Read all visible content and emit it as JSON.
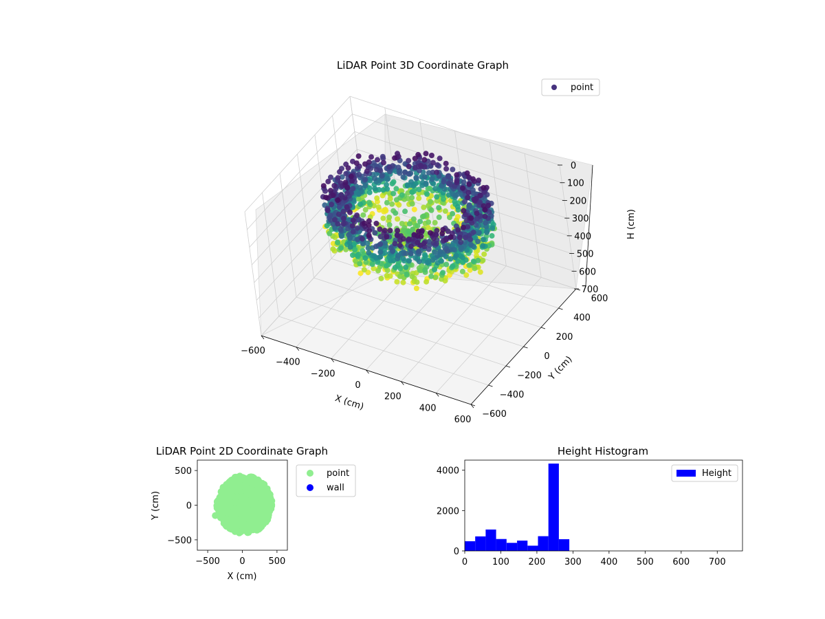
{
  "chart_data": [
    {
      "type": "scatter",
      "subtype": "3d",
      "title": "LiDAR Point 3D Coordinate Graph",
      "xlabel": "X (cm)",
      "ylabel": "Y (cm)",
      "zlabel": "H (cm)",
      "xlim": [
        -600,
        600
      ],
      "ylim": [
        -600,
        600
      ],
      "zlim": [
        0,
        700
      ],
      "z_inverted": true,
      "xticks": [
        "−600",
        "−400",
        "−200",
        "0",
        "200",
        "400",
        "600"
      ],
      "yticks": [
        "−600",
        "−400",
        "−200",
        "0",
        "200",
        "400",
        "600"
      ],
      "zticks": [
        "0",
        "100",
        "200",
        "300",
        "400",
        "500",
        "600",
        "700"
      ],
      "colormap": "viridis",
      "grid": true,
      "legend": {
        "position": "top-right",
        "entries": [
          {
            "label": "point",
            "color": "#46327e"
          }
        ]
      },
      "outliers": [
        {
          "x": -430,
          "y": -100,
          "h": 300
        },
        {
          "x": -330,
          "y": -150,
          "h": 330
        }
      ]
    },
    {
      "type": "scatter",
      "title": "LiDAR Point 2D Coordinate Graph",
      "xlabel": "X (cm)",
      "ylabel": "Y (cm)",
      "xlim": [
        -650,
        650
      ],
      "ylim": [
        -650,
        650
      ],
      "xticks": [
        "−500",
        "0",
        "500"
      ],
      "yticks": [
        "−500",
        "0",
        "500"
      ],
      "series": [
        {
          "name": "point",
          "color": "#90ee90"
        },
        {
          "name": "wall",
          "color": "#0000ff"
        }
      ],
      "outliers": [
        {
          "x": -390,
          "y": -150
        }
      ],
      "legend": {
        "position": "outside-right"
      }
    },
    {
      "type": "histogram",
      "title": "Height Histogram",
      "xlabel": "",
      "ylabel": "",
      "xlim": [
        0,
        770
      ],
      "ylim": [
        0,
        4500
      ],
      "xticks": [
        "0",
        "100",
        "200",
        "300",
        "400",
        "500",
        "600",
        "700"
      ],
      "yticks": [
        "0",
        "2000",
        "4000"
      ],
      "bin_width": 29,
      "bins": [
        {
          "start": 0,
          "count": 480
        },
        {
          "start": 29,
          "count": 720
        },
        {
          "start": 58,
          "count": 1060
        },
        {
          "start": 87,
          "count": 590
        },
        {
          "start": 116,
          "count": 400
        },
        {
          "start": 145,
          "count": 510
        },
        {
          "start": 174,
          "count": 260
        },
        {
          "start": 203,
          "count": 730
        },
        {
          "start": 232,
          "count": 4330
        },
        {
          "start": 261,
          "count": 580
        }
      ],
      "series": [
        {
          "name": "Height",
          "color": "#0000ff"
        }
      ],
      "legend": {
        "position": "top-right"
      }
    }
  ]
}
